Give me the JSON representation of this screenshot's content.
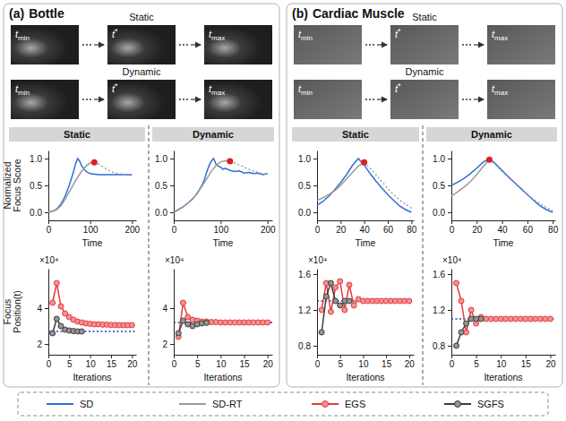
{
  "panels": [
    {
      "label": "(a)",
      "title": "Bottle",
      "rows": [
        {
          "name": "Static",
          "frames": [
            {
              "main": "t",
              "sub": "min"
            },
            {
              "main": "t",
              "sup": "*"
            },
            {
              "main": "t",
              "sub": "max"
            }
          ]
        },
        {
          "name": "Dynamic",
          "frames": [
            {
              "main": "t",
              "sub": "min"
            },
            {
              "main": "t",
              "sup": "*"
            },
            {
              "main": "t",
              "sub": "max"
            }
          ]
        }
      ]
    },
    {
      "label": "(b)",
      "title": "Cardiac Muscle",
      "rows": [
        {
          "name": "Static",
          "frames": [
            {
              "main": "t",
              "sub": "min"
            },
            {
              "main": "t",
              "sup": "*"
            },
            {
              "main": "t",
              "sub": "max"
            }
          ]
        },
        {
          "name": "Dynamic",
          "frames": [
            {
              "main": "t",
              "sub": "min"
            },
            {
              "main": "t",
              "sup": "*"
            },
            {
              "main": "t",
              "sub": "max"
            }
          ]
        }
      ]
    }
  ],
  "chart_data": [
    {
      "type": "line",
      "title": "Static",
      "xlabel": "Time",
      "ylabel": "Normalized Focus Score",
      "xlim": [
        0,
        210
      ],
      "ylim": [
        -0.15,
        1.15
      ],
      "xticks": [
        0,
        100,
        200
      ],
      "yticks": [
        {
          "value": 0,
          "label": "0.0"
        },
        {
          "value": 0.5,
          "label": "0.5"
        },
        {
          "value": 1,
          "label": "1.0"
        }
      ],
      "series": [
        {
          "color": "#2f6fd6",
          "line_style": "solid",
          "x": [
            0,
            10,
            20,
            30,
            40,
            50,
            60,
            65,
            70,
            75,
            80,
            90,
            100,
            120,
            140,
            160,
            180,
            200
          ],
          "values": [
            0.0,
            0.02,
            0.06,
            0.15,
            0.3,
            0.5,
            0.75,
            0.9,
            1.0,
            0.95,
            0.86,
            0.76,
            0.72,
            0.7,
            0.7,
            0.7,
            0.7,
            0.7
          ]
        },
        {
          "color": "#9a9a9a",
          "line_style": "solid",
          "x": [
            0,
            10,
            20,
            30,
            40,
            50,
            60,
            70,
            80,
            90,
            100,
            110
          ],
          "values": [
            0.0,
            0.02,
            0.05,
            0.12,
            0.24,
            0.38,
            0.52,
            0.65,
            0.77,
            0.86,
            0.92,
            0.93
          ]
        },
        {
          "color": "#9a9a9a",
          "line_style": "dotted",
          "x": [
            110,
            120,
            130,
            140,
            150,
            160,
            180,
            200
          ],
          "values": [
            0.93,
            0.9,
            0.85,
            0.8,
            0.76,
            0.73,
            0.7,
            0.68
          ]
        },
        {
          "type": "scatter",
          "color": "#e0201f",
          "marker": "circle",
          "x": [
            110
          ],
          "values": [
            0.93
          ]
        }
      ]
    },
    {
      "type": "line",
      "title": "Dynamic",
      "xlabel": "Time",
      "xlim": [
        0,
        210
      ],
      "ylim": [
        -0.15,
        1.15
      ],
      "xticks": [
        0,
        100,
        200
      ],
      "yticks": [
        {
          "value": 0,
          "label": "0.0"
        },
        {
          "value": 0.5,
          "label": "0.5"
        },
        {
          "value": 1,
          "label": "1.0"
        }
      ],
      "series": [
        {
          "color": "#2f6fd6",
          "line_style": "solid",
          "x": [
            0,
            10,
            20,
            30,
            40,
            50,
            60,
            65,
            70,
            75,
            80,
            85,
            90,
            95,
            100,
            105,
            110,
            120,
            130,
            140,
            150,
            160,
            170,
            180,
            190,
            200
          ],
          "values": [
            0.0,
            0.05,
            0.1,
            0.17,
            0.25,
            0.35,
            0.5,
            0.6,
            0.74,
            0.86,
            0.95,
            1.0,
            0.9,
            0.86,
            0.84,
            0.8,
            0.82,
            0.78,
            0.76,
            0.77,
            0.73,
            0.74,
            0.72,
            0.73,
            0.7,
            0.72
          ]
        },
        {
          "color": "#9a9a9a",
          "line_style": "solid",
          "x": [
            0,
            20,
            40,
            60,
            70,
            80,
            90,
            100,
            110,
            120
          ],
          "values": [
            0.0,
            0.1,
            0.24,
            0.48,
            0.62,
            0.76,
            0.87,
            0.94,
            0.96,
            0.95
          ]
        },
        {
          "color": "#9a9a9a",
          "line_style": "dotted",
          "x": [
            120,
            140,
            160,
            180,
            200
          ],
          "values": [
            0.95,
            0.88,
            0.8,
            0.74,
            0.7
          ]
        },
        {
          "type": "scatter",
          "color": "#e0201f",
          "marker": "circle",
          "x": [
            120
          ],
          "values": [
            0.95
          ]
        }
      ]
    },
    {
      "type": "line",
      "xlabel": "Iterations",
      "ylabel": "Focus Position(t)",
      "annotations": [
        "×10⁴"
      ],
      "xlim": [
        0,
        21
      ],
      "ylim": [
        1.4,
        6.2
      ],
      "xticks": [
        0,
        5,
        10,
        15,
        20
      ],
      "yticks": [
        2,
        4
      ],
      "series": [
        {
          "color": "#1c3fb8",
          "line_style": "dotted",
          "x": [
            0,
            21
          ],
          "values": [
            2.7,
            2.7
          ]
        },
        {
          "color": "#e8393b",
          "line_style": "solid",
          "marker": "circle",
          "x": [
            1,
            2,
            3,
            4,
            5,
            6,
            7,
            8,
            9,
            10,
            11,
            12,
            13,
            14,
            15,
            16,
            17,
            18,
            19,
            20
          ],
          "values": [
            4.3,
            5.4,
            4.1,
            3.7,
            3.5,
            3.35,
            3.25,
            3.2,
            3.15,
            3.12,
            3.1,
            3.1,
            3.08,
            3.08,
            3.06,
            3.06,
            3.05,
            3.05,
            3.05,
            3.05
          ]
        },
        {
          "color": "#3c3c3c",
          "line_style": "solid",
          "marker": "circle",
          "x": [
            1,
            2,
            3,
            4,
            5,
            6,
            7,
            8
          ],
          "values": [
            2.6,
            3.4,
            3.0,
            2.8,
            2.75,
            2.72,
            2.7,
            2.7
          ]
        }
      ]
    },
    {
      "type": "line",
      "xlabel": "Iterations",
      "annotations": [
        "×10⁴"
      ],
      "xlim": [
        0,
        21
      ],
      "ylim": [
        1.4,
        6.2
      ],
      "xticks": [
        0,
        5,
        10,
        15,
        20
      ],
      "yticks": [
        2,
        4
      ],
      "series": [
        {
          "color": "#1c3fb8",
          "line_style": "dotted",
          "x": [
            0,
            21
          ],
          "values": [
            3.2,
            3.2
          ]
        },
        {
          "color": "#e8393b",
          "line_style": "solid",
          "marker": "circle",
          "x": [
            1,
            2,
            3,
            4,
            5,
            6,
            7,
            8,
            9,
            10,
            11,
            12,
            13,
            14,
            15,
            16,
            17,
            18,
            19,
            20
          ],
          "values": [
            2.4,
            4.3,
            3.5,
            3.35,
            3.3,
            3.25,
            3.25,
            3.22,
            3.22,
            3.2,
            3.2,
            3.2,
            3.2,
            3.2,
            3.2,
            3.2,
            3.2,
            3.2,
            3.2,
            3.2
          ]
        },
        {
          "color": "#3c3c3c",
          "line_style": "solid",
          "marker": "circle",
          "x": [
            1,
            2,
            3,
            4,
            5,
            6,
            7
          ],
          "values": [
            2.6,
            3.3,
            3.1,
            3.0,
            3.1,
            3.15,
            3.18
          ]
        }
      ]
    },
    {
      "type": "line",
      "title": "Static",
      "xlabel": "Time",
      "xlim": [
        0,
        82
      ],
      "ylim": [
        -0.15,
        1.15
      ],
      "xticks": [
        0,
        20,
        40,
        60,
        80
      ],
      "yticks": [
        {
          "value": 0,
          "label": "0.0"
        },
        {
          "value": 0.5,
          "label": "0.5"
        },
        {
          "value": 1,
          "label": "1.0"
        }
      ],
      "series": [
        {
          "color": "#2f6fd6",
          "line_style": "solid",
          "x": [
            0,
            5,
            10,
            15,
            20,
            25,
            30,
            35,
            40,
            45,
            50,
            55,
            60,
            65,
            70,
            75,
            80
          ],
          "values": [
            0.13,
            0.2,
            0.3,
            0.42,
            0.55,
            0.7,
            0.87,
            1.0,
            0.88,
            0.72,
            0.58,
            0.45,
            0.33,
            0.22,
            0.12,
            0.05,
            0.0
          ]
        },
        {
          "color": "#9a9a9a",
          "line_style": "solid",
          "x": [
            0,
            5,
            10,
            15,
            20,
            25,
            30,
            35,
            40
          ],
          "values": [
            0.22,
            0.27,
            0.33,
            0.4,
            0.5,
            0.62,
            0.74,
            0.86,
            0.93
          ]
        },
        {
          "color": "#9a9a9a",
          "line_style": "dotted",
          "x": [
            40,
            45,
            50,
            55,
            60,
            65,
            70,
            75,
            80
          ],
          "values": [
            0.93,
            0.82,
            0.7,
            0.57,
            0.44,
            0.33,
            0.23,
            0.15,
            0.08
          ]
        },
        {
          "type": "scatter",
          "color": "#e0201f",
          "marker": "circle",
          "x": [
            40
          ],
          "values": [
            0.93
          ]
        }
      ]
    },
    {
      "type": "line",
      "title": "Dynamic",
      "xlabel": "Time",
      "xlim": [
        0,
        82
      ],
      "ylim": [
        -0.15,
        1.15
      ],
      "xticks": [
        0,
        20,
        40,
        60,
        80
      ],
      "yticks": [
        {
          "value": 0,
          "label": "0.0"
        },
        {
          "value": 0.5,
          "label": "0.5"
        },
        {
          "value": 1,
          "label": "1.0"
        }
      ],
      "series": [
        {
          "color": "#2f6fd6",
          "line_style": "solid",
          "x": [
            0,
            5,
            10,
            15,
            20,
            25,
            30,
            35,
            40,
            45,
            50,
            55,
            60,
            65,
            70,
            75,
            80
          ],
          "values": [
            0.5,
            0.56,
            0.63,
            0.72,
            0.82,
            0.93,
            1.0,
            0.9,
            0.78,
            0.66,
            0.55,
            0.44,
            0.33,
            0.22,
            0.12,
            0.05,
            0.0
          ]
        },
        {
          "color": "#9a9a9a",
          "line_style": "solid",
          "x": [
            0,
            5,
            10,
            15,
            20,
            25,
            30
          ],
          "values": [
            0.3,
            0.38,
            0.47,
            0.57,
            0.7,
            0.85,
            0.98
          ]
        },
        {
          "color": "#9a9a9a",
          "line_style": "dotted",
          "x": [
            30,
            35,
            40,
            45,
            50,
            55,
            60,
            65,
            70,
            75,
            80
          ],
          "values": [
            0.98,
            0.88,
            0.76,
            0.65,
            0.54,
            0.43,
            0.33,
            0.24,
            0.16,
            0.09,
            0.03
          ]
        },
        {
          "type": "scatter",
          "color": "#e0201f",
          "marker": "circle",
          "x": [
            30
          ],
          "values": [
            0.98
          ]
        }
      ]
    },
    {
      "type": "line",
      "xlabel": "Iterations",
      "annotations": [
        "×10⁴"
      ],
      "xlim": [
        0,
        21
      ],
      "ylim": [
        0.7,
        1.66
      ],
      "xticks": [
        0,
        5,
        10,
        15,
        20
      ],
      "yticks": [
        0.8,
        1.2,
        1.6
      ],
      "series": [
        {
          "color": "#1c3fb8",
          "line_style": "dotted",
          "x": [
            0,
            21
          ],
          "values": [
            1.3,
            1.3
          ]
        },
        {
          "color": "#e8393b",
          "line_style": "solid",
          "marker": "circle",
          "x": [
            1,
            2,
            3,
            4,
            5,
            6,
            7,
            8,
            9,
            10,
            11,
            12,
            13,
            14,
            15,
            16,
            17,
            18,
            19,
            20
          ],
          "values": [
            1.2,
            1.5,
            1.18,
            1.45,
            1.52,
            1.2,
            1.48,
            1.25,
            1.32,
            1.3,
            1.3,
            1.3,
            1.3,
            1.3,
            1.3,
            1.3,
            1.3,
            1.3,
            1.3,
            1.3
          ]
        },
        {
          "color": "#3c3c3c",
          "line_style": "solid",
          "marker": "circle",
          "x": [
            1,
            2,
            3,
            4,
            5,
            6,
            7
          ],
          "values": [
            0.95,
            1.35,
            1.5,
            1.3,
            1.25,
            1.3,
            1.3
          ]
        }
      ]
    },
    {
      "type": "line",
      "xlabel": "Iterations",
      "annotations": [
        "×10⁴"
      ],
      "xlim": [
        0,
        21
      ],
      "ylim": [
        0.7,
        1.66
      ],
      "xticks": [
        0,
        5,
        10,
        15,
        20
      ],
      "yticks": [
        0.8,
        1.2,
        1.6
      ],
      "series": [
        {
          "color": "#1c3fb8",
          "line_style": "dotted",
          "x": [
            0,
            21
          ],
          "values": [
            1.1,
            1.1
          ]
        },
        {
          "color": "#e8393b",
          "line_style": "solid",
          "marker": "circle",
          "x": [
            1,
            2,
            3,
            4,
            5,
            6,
            7,
            8,
            9,
            10,
            11,
            12,
            13,
            14,
            15,
            16,
            17,
            18,
            19,
            20
          ],
          "values": [
            1.5,
            1.3,
            0.95,
            1.2,
            1.05,
            1.12,
            1.1,
            1.1,
            1.1,
            1.1,
            1.1,
            1.1,
            1.1,
            1.1,
            1.1,
            1.1,
            1.1,
            1.1,
            1.1,
            1.1
          ]
        },
        {
          "color": "#3c3c3c",
          "line_style": "solid",
          "marker": "circle",
          "x": [
            1,
            2,
            3,
            4,
            5,
            6
          ],
          "values": [
            0.8,
            0.95,
            1.05,
            1.1,
            1.1,
            1.1
          ]
        }
      ]
    }
  ],
  "figure_legend": [
    {
      "name": "SD",
      "color": "#2f6fd6"
    },
    {
      "name": "SD-RT",
      "color": "#9a9a9a"
    },
    {
      "name": "EGS",
      "color": "#e8393b",
      "marker": "circle"
    },
    {
      "name": "SGFS",
      "color": "#3c3c3c",
      "marker": "circle"
    }
  ]
}
